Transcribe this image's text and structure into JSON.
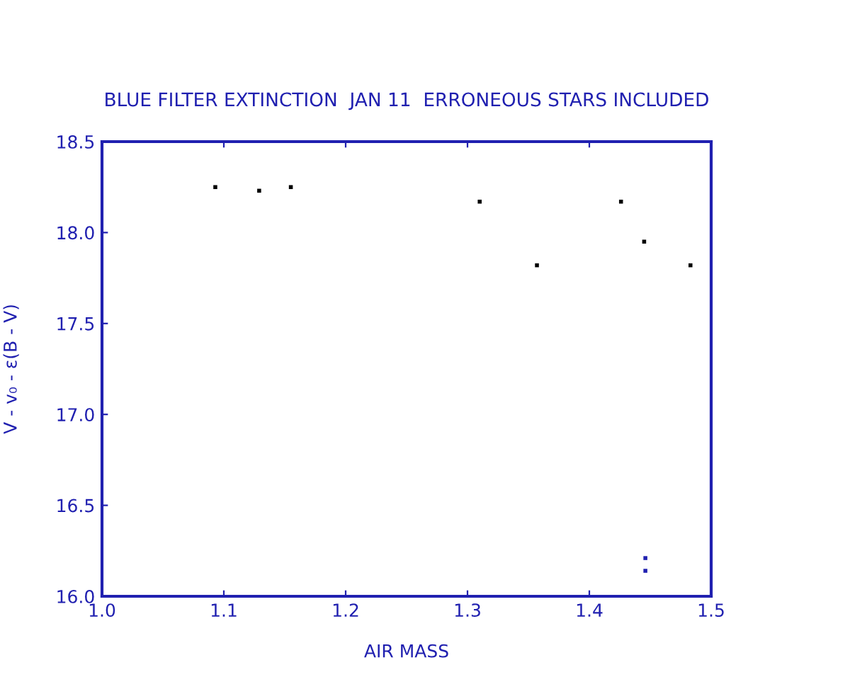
{
  "chart_data": {
    "type": "scatter",
    "title": "BLUE FILTER EXTINCTION  JAN 11  ERRONEOUS STARS INCLUDED",
    "xlabel": "AIR MASS",
    "ylabel": "V - v₀ - ε(B - V)",
    "series": [
      {
        "color": "#000000",
        "x": [
          1.093,
          1.129,
          1.155,
          1.31,
          1.357,
          1.426,
          1.445,
          1.483
        ],
        "values": [
          18.25,
          18.23,
          18.25,
          18.17,
          17.82,
          18.17,
          17.95,
          17.82
        ]
      },
      {
        "color": "#2020b0",
        "x": [
          1.446,
          1.446
        ],
        "values": [
          16.21,
          16.14
        ]
      }
    ],
    "xlim": [
      1.0,
      1.5
    ],
    "xticks": [
      {
        "value": 1,
        "label": "1.0"
      },
      1.1,
      1.2,
      1.3,
      1.4,
      1.5
    ],
    "ylim": [
      16.0,
      18.5
    ],
    "yticks": [
      {
        "value": 16,
        "label": "16.0"
      },
      16.5,
      {
        "value": 17,
        "label": "17.0"
      },
      17.5,
      {
        "value": 18,
        "label": "18.0"
      },
      18.5
    ],
    "grid": false,
    "legend": false,
    "marker": "square"
  }
}
